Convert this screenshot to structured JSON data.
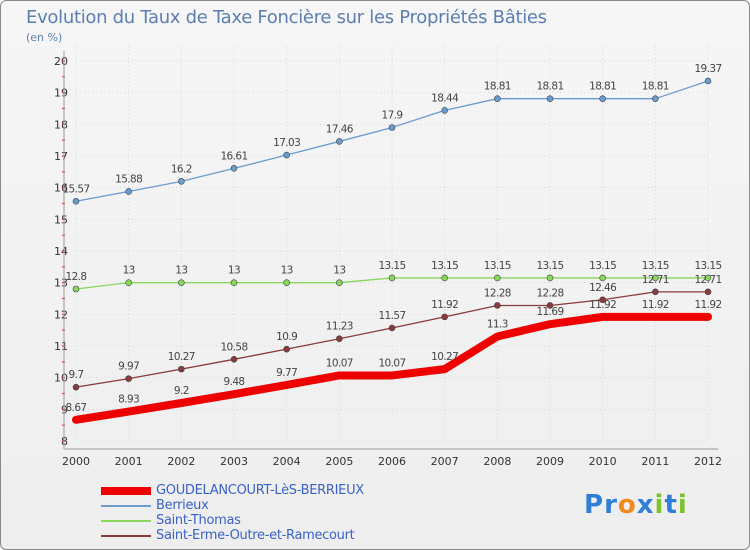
{
  "header": {
    "title": "Evolution du Taux de Taxe Foncière sur les Propriétés Bâties",
    "unit": "(en %)"
  },
  "chart_data": {
    "type": "line",
    "title": "Evolution du Taux de Taxe Foncière sur les Propriétés Bâties",
    "ylabel": "(en %)",
    "xlabel": "",
    "x": [
      "2000",
      "2001",
      "2002",
      "2003",
      "2004",
      "2005",
      "2006",
      "2007",
      "2008",
      "2009",
      "2010",
      "2011",
      "2012"
    ],
    "ylim": [
      8,
      20
    ],
    "yticks": [
      "8",
      "9",
      "10",
      "11",
      "12",
      "13",
      "14",
      "15",
      "16",
      "17",
      "18",
      "19",
      "20"
    ],
    "grid": true,
    "series": [
      {
        "name": "GOUDELANCOURT-LèS-BERRIEUX",
        "color": "#ee0000",
        "values": [
          8.67,
          8.93,
          9.2,
          9.48,
          9.77,
          10.07,
          10.07,
          10.27,
          11.3,
          11.69,
          11.92,
          11.92,
          11.92
        ],
        "labels": [
          "8.67",
          "8.93",
          "9.2",
          "9.48",
          "9.77",
          "10.07",
          "10.07",
          "10.27",
          "11.3",
          "11.69",
          "11.92",
          "11.92",
          "11.92"
        ]
      },
      {
        "name": "Berrieux",
        "color": "#6b9cd0",
        "values": [
          15.57,
          15.88,
          16.2,
          16.61,
          17.03,
          17.46,
          17.9,
          18.44,
          18.81,
          18.81,
          18.81,
          18.81,
          19.37
        ],
        "labels": [
          "15.57",
          "15.88",
          "16.2",
          "16.61",
          "17.03",
          "17.46",
          "17.9",
          "18.44",
          "18.81",
          "18.81",
          "18.81",
          "18.81",
          "19.37"
        ]
      },
      {
        "name": "Saint-Thomas",
        "color": "#88d65a",
        "values": [
          12.8,
          13,
          13,
          13,
          13,
          13,
          13.15,
          13.15,
          13.15,
          13.15,
          13.15,
          13.15,
          13.15
        ],
        "labels": [
          "12.8",
          "13",
          "13",
          "13",
          "13",
          "13",
          "13.15",
          "13.15",
          "13.15",
          "13.15",
          "13.15",
          "13.15",
          "13.15"
        ]
      },
      {
        "name": "Saint-Erme-Outre-et-Ramecourt",
        "color": "#8a3a3a",
        "values": [
          9.7,
          9.97,
          10.27,
          10.58,
          10.9,
          11.23,
          11.57,
          11.92,
          12.28,
          12.28,
          12.46,
          12.71,
          12.71
        ],
        "labels": [
          "9.7",
          "9.97",
          "10.27",
          "10.58",
          "10.9",
          "11.23",
          "11.57",
          "11.92",
          "12.28",
          "12.28",
          "12.46",
          "12.71",
          "12.71"
        ]
      }
    ],
    "legend": "bottom-left"
  },
  "legend": {
    "items": [
      {
        "label": "GOUDELANCOURT-LèS-BERRIEUX",
        "color": "#ee0000"
      },
      {
        "label": "Berrieux",
        "color": "#6b9cd0"
      },
      {
        "label": "Saint-Thomas",
        "color": "#88d65a"
      },
      {
        "label": "Saint-Erme-Outre-et-Ramecourt",
        "color": "#8a3a3a"
      }
    ]
  },
  "brand": {
    "logo_text": "Proxiti",
    "letters": [
      "P",
      "r",
      "o",
      "x",
      "i",
      "t",
      "i"
    ],
    "letter_colors": [
      "#2f7fd8",
      "#2f7fd8",
      "#f08a1c",
      "#2f7fd8",
      "#7cc42a",
      "#2f7fd8",
      "#7cc42a"
    ]
  }
}
